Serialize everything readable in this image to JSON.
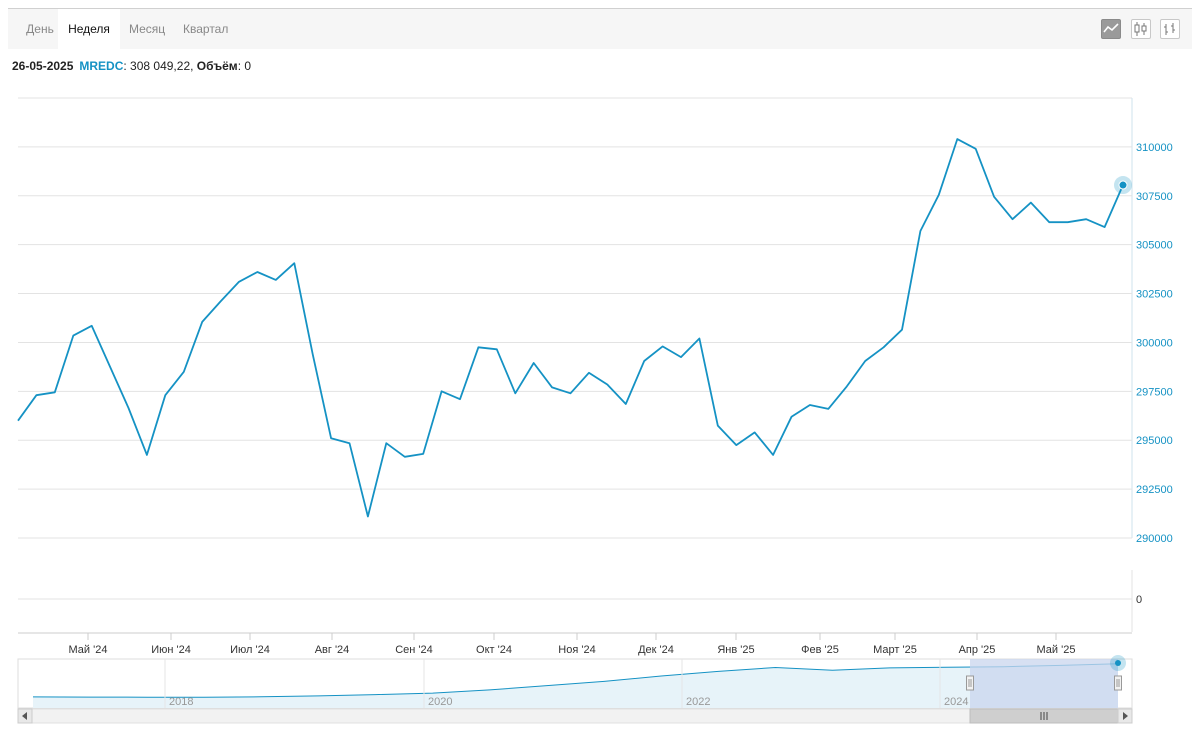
{
  "tabs": [
    {
      "label": "День",
      "active": false
    },
    {
      "label": "Неделя",
      "active": true
    },
    {
      "label": "Месяц",
      "active": false
    },
    {
      "label": "Квартал",
      "active": false
    }
  ],
  "tools": [
    "line-chart-icon",
    "candlestick-icon",
    "ohlc-icon"
  ],
  "info": {
    "date": "26-05-2025",
    "symbol": "MREDC",
    "value_text": ": 308 049,22, ",
    "volume_label": "Объём",
    "volume_text": ": 0"
  },
  "colors": {
    "line": "#1592c4",
    "nav_fill": "#e7f3f9",
    "selection": "#c9d6ee"
  },
  "chart_data": {
    "type": "line",
    "title": "",
    "xlabel": "",
    "ylabel": "",
    "ylim": [
      290000,
      312500
    ],
    "y_ticks": [
      "290000",
      "292500",
      "295000",
      "297500",
      "300000",
      "302500",
      "305000",
      "307500",
      "310000"
    ],
    "x_ticks": [
      "Май '24",
      "Июн '24",
      "Июл '24",
      "Авг '24",
      "Сен '24",
      "Окт '24",
      "Ноя '24",
      "Дек '24",
      "Янв '25",
      "Фев '25",
      "Март '25",
      "Апр '25",
      "Май '25"
    ],
    "volume_ticks": [
      "0"
    ],
    "series": [
      {
        "values": [
          296000,
          297300,
          297450,
          300350,
          300850,
          298750,
          296650,
          294250,
          297300,
          298500,
          301050,
          302100,
          303100,
          303600,
          303200,
          304050,
          299400,
          295100,
          294850,
          291100,
          294850,
          294150,
          294300,
          297500,
          297100,
          299750,
          299650,
          297400,
          298950,
          297700,
          297400,
          298450,
          297850,
          296850,
          299050,
          299800,
          299250,
          300200,
          295750,
          294750,
          295400,
          294250,
          296200,
          296800,
          296600,
          297750,
          299050,
          299750,
          300650,
          305700,
          307550,
          310400,
          309900,
          307450,
          306300,
          307150,
          306150,
          306150,
          306300,
          305900,
          308049.22
        ]
      }
    ],
    "navigator": {
      "x_ticks": [
        "2018",
        "2020",
        "2022",
        "2024"
      ],
      "values": [
        152000,
        151000,
        150500,
        150000,
        152500,
        157000,
        163000,
        170000,
        185000,
        205000,
        225000,
        250000,
        272000,
        290000,
        277000,
        288000,
        291000,
        294000,
        300000,
        308000
      ]
    }
  }
}
